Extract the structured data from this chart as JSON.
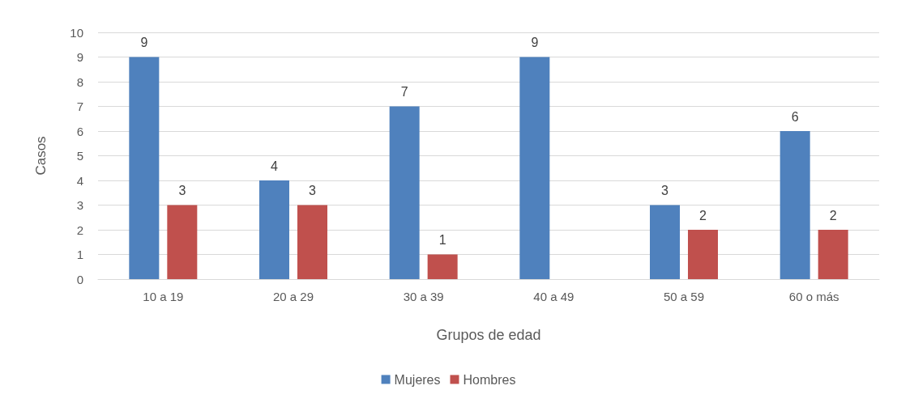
{
  "chart_data": {
    "type": "bar",
    "xlabel": "Grupos de edad",
    "ylabel": "Casos",
    "categories": [
      "10 a 19",
      "20 a 29",
      "30 a 39",
      "40 a 49",
      "50 a 59",
      "60 o más"
    ],
    "series": [
      {
        "name": "Mujeres",
        "color": "#4f81bd",
        "values": [
          9,
          4,
          7,
          9,
          3,
          6
        ]
      },
      {
        "name": "Hombres",
        "color": "#c0504d",
        "values": [
          3,
          3,
          1,
          null,
          2,
          2
        ]
      }
    ],
    "ylim": [
      0,
      10
    ],
    "yticks": [
      0,
      1,
      2,
      3,
      4,
      5,
      6,
      7,
      8,
      9,
      10
    ],
    "grid": "y",
    "legend": "bottom",
    "data_labels": true
  }
}
